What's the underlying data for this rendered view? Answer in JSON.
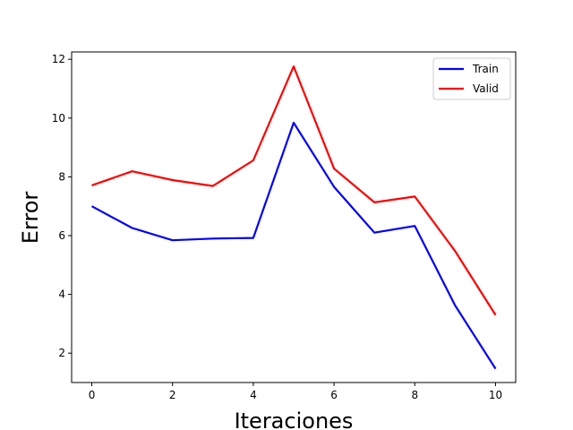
{
  "chart_data": {
    "type": "line",
    "title": "",
    "xlabel": "Iteraciones",
    "ylabel": "Error",
    "x": [
      0,
      1,
      2,
      3,
      4,
      5,
      6,
      7,
      8,
      9,
      10
    ],
    "xlim": [
      -0.5,
      10.5
    ],
    "ylim": [
      1.0,
      12.25
    ],
    "xticks": [
      0,
      2,
      4,
      6,
      8,
      10
    ],
    "yticks": [
      2,
      4,
      6,
      8,
      10,
      12
    ],
    "grid": false,
    "legend_position": "top-right",
    "series": [
      {
        "name": "Train",
        "color": "#0000ff",
        "values": [
          7.0,
          6.26,
          5.84,
          5.9,
          5.92,
          9.84,
          7.66,
          6.1,
          6.33,
          3.62,
          1.47
        ]
      },
      {
        "name": "Valid",
        "color": "#ff0000",
        "values": [
          7.71,
          8.19,
          7.89,
          7.69,
          8.56,
          11.76,
          8.28,
          7.13,
          7.33,
          5.47,
          3.3
        ]
      }
    ]
  }
}
